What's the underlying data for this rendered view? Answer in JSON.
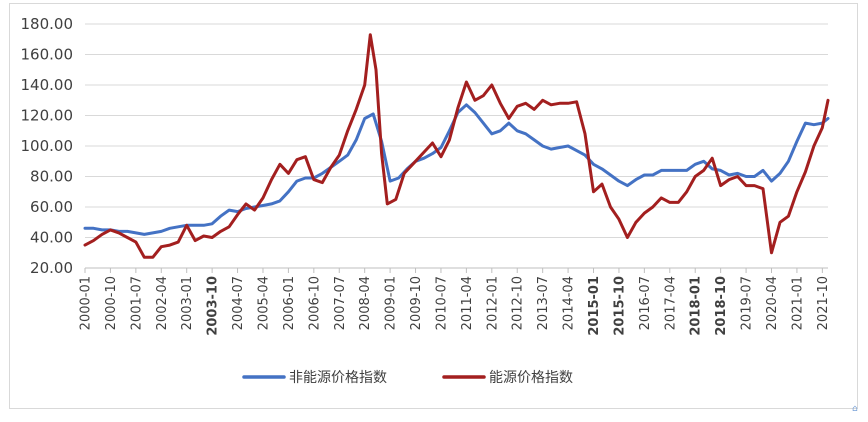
{
  "chart_data": {
    "type": "line",
    "title": "",
    "xlabel": "",
    "ylabel": "",
    "ylim": [
      20,
      180
    ],
    "y_ticks": [
      "20.00",
      "40.00",
      "60.00",
      "80.00",
      "100.00",
      "120.00",
      "140.00",
      "160.00",
      "180.00"
    ],
    "x_ticks": [
      "2000-01",
      "2000-10",
      "2001-07",
      "2002-04",
      "2003-01",
      "2003-10",
      "2004-07",
      "2005-04",
      "2006-01",
      "2006-10",
      "2007-07",
      "2008-04",
      "2009-01",
      "2009-10",
      "2010-07",
      "2011-04",
      "2012-01",
      "2012-10",
      "2013-07",
      "2014-04",
      "2015-01",
      "2015-10",
      "2016-07",
      "2017-04",
      "2018-01",
      "2018-10",
      "2019-07",
      "2020-04",
      "2021-01",
      "2021-10"
    ],
    "bold_ticks": [
      "2003-10",
      "2015-01",
      "2015-10",
      "2018-01",
      "2018-10"
    ],
    "grid": "horizontal",
    "legend": "bottom",
    "series": [
      {
        "name": "非能源价格指数",
        "color": "#4472c4",
        "points": [
          [
            "2000-01",
            46
          ],
          [
            "2000-04",
            46
          ],
          [
            "2000-07",
            45
          ],
          [
            "2000-10",
            45
          ],
          [
            "2001-01",
            44
          ],
          [
            "2001-04",
            44
          ],
          [
            "2001-07",
            43
          ],
          [
            "2001-10",
            42
          ],
          [
            "2002-01",
            43
          ],
          [
            "2002-04",
            44
          ],
          [
            "2002-07",
            46
          ],
          [
            "2002-10",
            47
          ],
          [
            "2003-01",
            48
          ],
          [
            "2003-04",
            48
          ],
          [
            "2003-07",
            48
          ],
          [
            "2003-10",
            49
          ],
          [
            "2004-01",
            54
          ],
          [
            "2004-04",
            58
          ],
          [
            "2004-07",
            57
          ],
          [
            "2004-10",
            59
          ],
          [
            "2005-01",
            60
          ],
          [
            "2005-04",
            61
          ],
          [
            "2005-07",
            62
          ],
          [
            "2005-10",
            64
          ],
          [
            "2006-01",
            70
          ],
          [
            "2006-04",
            77
          ],
          [
            "2006-07",
            79
          ],
          [
            "2006-10",
            79
          ],
          [
            "2007-01",
            82
          ],
          [
            "2007-04",
            86
          ],
          [
            "2007-07",
            90
          ],
          [
            "2007-10",
            94
          ],
          [
            "2008-01",
            104
          ],
          [
            "2008-04",
            118
          ],
          [
            "2008-07",
            121
          ],
          [
            "2008-10",
            103
          ],
          [
            "2009-01",
            77
          ],
          [
            "2009-04",
            79
          ],
          [
            "2009-07",
            85
          ],
          [
            "2009-10",
            90
          ],
          [
            "2010-01",
            92
          ],
          [
            "2010-04",
            95
          ],
          [
            "2010-07",
            99
          ],
          [
            "2010-10",
            110
          ],
          [
            "2011-01",
            122
          ],
          [
            "2011-04",
            127
          ],
          [
            "2011-07",
            122
          ],
          [
            "2011-10",
            115
          ],
          [
            "2012-01",
            108
          ],
          [
            "2012-04",
            110
          ],
          [
            "2012-07",
            115
          ],
          [
            "2012-10",
            110
          ],
          [
            "2013-01",
            108
          ],
          [
            "2013-04",
            104
          ],
          [
            "2013-07",
            100
          ],
          [
            "2013-10",
            98
          ],
          [
            "2014-01",
            99
          ],
          [
            "2014-04",
            100
          ],
          [
            "2014-07",
            97
          ],
          [
            "2014-10",
            94
          ],
          [
            "2015-01",
            88
          ],
          [
            "2015-04",
            85
          ],
          [
            "2015-07",
            81
          ],
          [
            "2015-10",
            77
          ],
          [
            "2016-01",
            74
          ],
          [
            "2016-04",
            78
          ],
          [
            "2016-07",
            81
          ],
          [
            "2016-10",
            81
          ],
          [
            "2017-01",
            84
          ],
          [
            "2017-04",
            84
          ],
          [
            "2017-07",
            84
          ],
          [
            "2017-10",
            84
          ],
          [
            "2018-01",
            88
          ],
          [
            "2018-04",
            90
          ],
          [
            "2018-07",
            85
          ],
          [
            "2018-10",
            84
          ],
          [
            "2019-01",
            81
          ],
          [
            "2019-04",
            82
          ],
          [
            "2019-07",
            80
          ],
          [
            "2019-10",
            80
          ],
          [
            "2020-01",
            84
          ],
          [
            "2020-04",
            77
          ],
          [
            "2020-07",
            82
          ],
          [
            "2020-10",
            90
          ],
          [
            "2021-01",
            103
          ],
          [
            "2021-04",
            115
          ],
          [
            "2021-07",
            114
          ],
          [
            "2021-10",
            115
          ],
          [
            "2021-12",
            118
          ]
        ]
      },
      {
        "name": "能源价格指数",
        "color": "#a31f1f",
        "points": [
          [
            "2000-01",
            35
          ],
          [
            "2000-04",
            38
          ],
          [
            "2000-07",
            42
          ],
          [
            "2000-10",
            45
          ],
          [
            "2001-01",
            43
          ],
          [
            "2001-04",
            40
          ],
          [
            "2001-07",
            37
          ],
          [
            "2001-10",
            27
          ],
          [
            "2002-01",
            27
          ],
          [
            "2002-04",
            34
          ],
          [
            "2002-07",
            35
          ],
          [
            "2002-10",
            37
          ],
          [
            "2003-01",
            48
          ],
          [
            "2003-04",
            38
          ],
          [
            "2003-07",
            41
          ],
          [
            "2003-10",
            40
          ],
          [
            "2004-01",
            44
          ],
          [
            "2004-04",
            47
          ],
          [
            "2004-07",
            55
          ],
          [
            "2004-10",
            62
          ],
          [
            "2005-01",
            58
          ],
          [
            "2005-04",
            66
          ],
          [
            "2005-07",
            78
          ],
          [
            "2005-10",
            88
          ],
          [
            "2006-01",
            82
          ],
          [
            "2006-04",
            91
          ],
          [
            "2006-07",
            93
          ],
          [
            "2006-10",
            78
          ],
          [
            "2007-01",
            76
          ],
          [
            "2007-04",
            86
          ],
          [
            "2007-07",
            94
          ],
          [
            "2007-10",
            110
          ],
          [
            "2008-01",
            124
          ],
          [
            "2008-04",
            140
          ],
          [
            "2008-06",
            173
          ],
          [
            "2008-08",
            150
          ],
          [
            "2008-10",
            95
          ],
          [
            "2008-12",
            62
          ],
          [
            "2009-03",
            65
          ],
          [
            "2009-06",
            82
          ],
          [
            "2009-10",
            90
          ],
          [
            "2010-01",
            96
          ],
          [
            "2010-04",
            102
          ],
          [
            "2010-07",
            93
          ],
          [
            "2010-10",
            104
          ],
          [
            "2011-01",
            125
          ],
          [
            "2011-04",
            142
          ],
          [
            "2011-07",
            130
          ],
          [
            "2011-10",
            133
          ],
          [
            "2012-01",
            140
          ],
          [
            "2012-04",
            128
          ],
          [
            "2012-07",
            118
          ],
          [
            "2012-10",
            126
          ],
          [
            "2013-01",
            128
          ],
          [
            "2013-04",
            124
          ],
          [
            "2013-07",
            130
          ],
          [
            "2013-10",
            127
          ],
          [
            "2014-01",
            128
          ],
          [
            "2014-04",
            128
          ],
          [
            "2014-07",
            129
          ],
          [
            "2014-10",
            108
          ],
          [
            "2015-01",
            70
          ],
          [
            "2015-04",
            75
          ],
          [
            "2015-07",
            60
          ],
          [
            "2015-10",
            52
          ],
          [
            "2016-01",
            40
          ],
          [
            "2016-04",
            50
          ],
          [
            "2016-07",
            56
          ],
          [
            "2016-10",
            60
          ],
          [
            "2017-01",
            66
          ],
          [
            "2017-04",
            63
          ],
          [
            "2017-07",
            63
          ],
          [
            "2017-10",
            70
          ],
          [
            "2018-01",
            80
          ],
          [
            "2018-04",
            84
          ],
          [
            "2018-07",
            92
          ],
          [
            "2018-10",
            74
          ],
          [
            "2019-01",
            78
          ],
          [
            "2019-04",
            80
          ],
          [
            "2019-07",
            74
          ],
          [
            "2019-10",
            74
          ],
          [
            "2020-01",
            72
          ],
          [
            "2020-04",
            30
          ],
          [
            "2020-07",
            50
          ],
          [
            "2020-10",
            54
          ],
          [
            "2021-01",
            70
          ],
          [
            "2021-04",
            83
          ],
          [
            "2021-07",
            100
          ],
          [
            "2021-10",
            112
          ],
          [
            "2021-12",
            130
          ]
        ]
      }
    ]
  },
  "corner_mark": "⌂"
}
